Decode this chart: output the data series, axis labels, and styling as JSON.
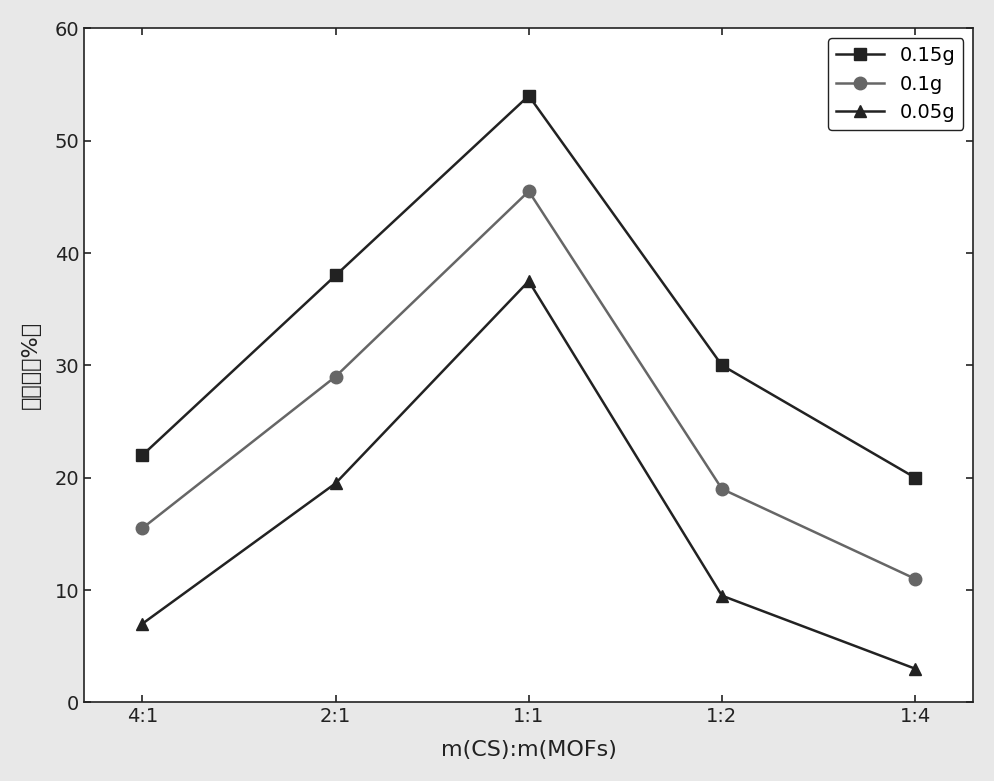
{
  "x_labels": [
    "4:1",
    "2:1",
    "1:1",
    "1:2",
    "1:4"
  ],
  "series": [
    {
      "label": "0.15g",
      "values": [
        22,
        38,
        54,
        30,
        20
      ],
      "color": "#222222",
      "marker": "s",
      "linestyle": "-"
    },
    {
      "label": "0.1g",
      "values": [
        15.5,
        29,
        45.5,
        19,
        11
      ],
      "color": "#666666",
      "marker": "o",
      "linestyle": "-"
    },
    {
      "label": "0.05g",
      "values": [
        7,
        19.5,
        37.5,
        9.5,
        3
      ],
      "color": "#222222",
      "marker": "^",
      "linestyle": "-"
    }
  ],
  "xlabel": "m(CS):m(MOFs)",
  "ylabel_chars": [
    "去",
    "除",
    "率",
    "(%)",
    ""
  ],
  "ylabel_text": "去除率（%）",
  "ylim": [
    0,
    60
  ],
  "yticks": [
    0,
    10,
    20,
    30,
    40,
    50,
    60
  ],
  "background_color": "#e8e8e8",
  "plot_bg_color": "#ffffff",
  "label_fontsize": 16,
  "tick_fontsize": 14,
  "legend_fontsize": 14,
  "linewidth": 1.8,
  "markersize": 9
}
